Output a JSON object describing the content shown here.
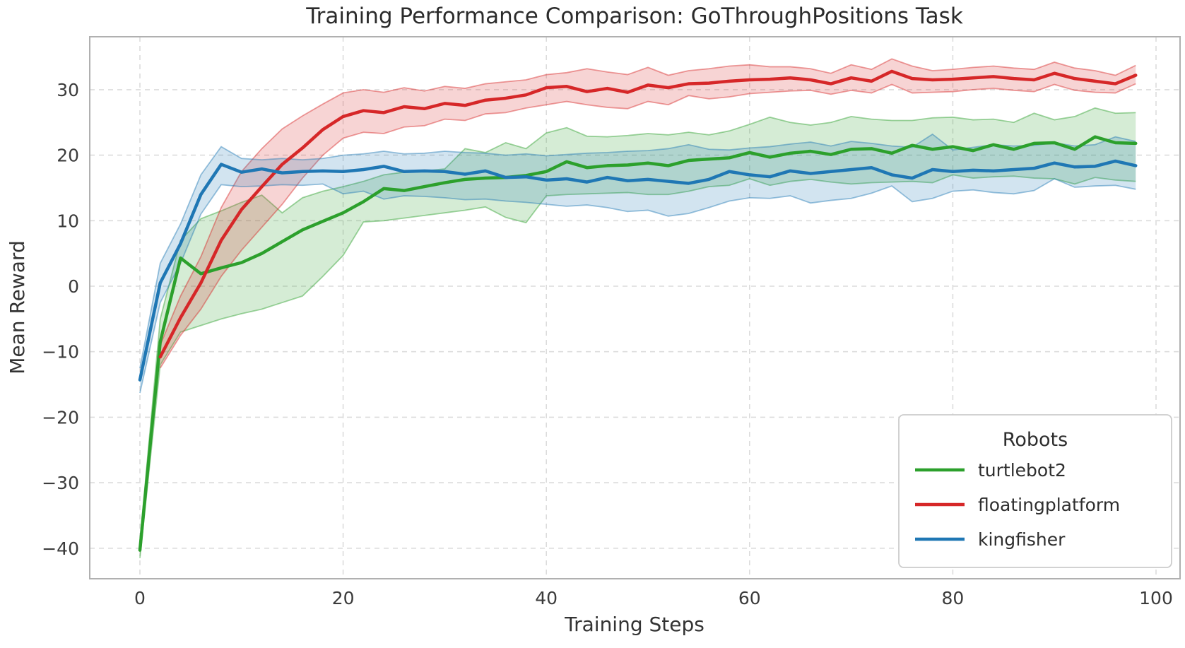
{
  "title": "Training Performance Comparison: GoThroughPositions Task",
  "xlabel": "Training Steps",
  "ylabel": "Mean Reward",
  "legend": {
    "title": "Robots",
    "entries": [
      "turtlebot2",
      "floatingplatform",
      "kingfisher"
    ]
  },
  "colors": {
    "turtlebot2": "#2ca02c",
    "floatingplatform": "#d62728",
    "kingfisher": "#1f77b4",
    "grid": "#dcdcdc",
    "spine": "#b0b0b0",
    "background": "#ffffff"
  },
  "chart_data": {
    "type": "line",
    "title": "Training Performance Comparison: GoThroughPositions Task",
    "xlabel": "Training Steps",
    "ylabel": "Mean Reward",
    "xlim": [
      -4.9,
      102.4
    ],
    "ylim": [
      -44.7,
      38.1
    ],
    "x_ticks": [
      0,
      20,
      40,
      60,
      80,
      100
    ],
    "y_ticks": [
      30,
      20,
      10,
      0,
      -10,
      -20,
      -30,
      -40
    ],
    "x_tick_labels": [
      "0",
      "20",
      "40",
      "60",
      "80",
      "100"
    ],
    "y_tick_labels": [
      "30",
      "20",
      "10",
      "0",
      "−10",
      "−20",
      "−30",
      "−40"
    ],
    "grid": "dashed",
    "legend_position": "lower right",
    "series": [
      {
        "name": "turtlebot2",
        "color": "#2ca02c",
        "x": [
          0,
          2,
          4,
          6,
          8,
          10,
          12,
          14,
          16,
          18,
          20,
          22,
          24,
          26,
          28,
          30,
          32,
          34,
          36,
          38,
          40,
          42,
          44,
          46,
          48,
          50,
          52,
          54,
          56,
          58,
          60,
          62,
          64,
          66,
          68,
          70,
          72,
          74,
          76,
          78,
          80,
          82,
          84,
          86,
          88,
          90,
          92,
          94,
          96,
          98
        ],
        "mean": [
          -40.3,
          -8.5,
          4.3,
          1.9,
          2.8,
          3.6,
          5.0,
          6.8,
          8.6,
          9.9,
          11.2,
          12.9,
          14.9,
          14.6,
          15.2,
          15.8,
          16.3,
          16.5,
          16.6,
          16.9,
          17.5,
          19.0,
          18.1,
          18.4,
          18.5,
          18.8,
          18.4,
          19.2,
          19.4,
          19.6,
          20.4,
          19.7,
          20.3,
          20.6,
          20.1,
          20.9,
          21.0,
          20.3,
          21.5,
          20.9,
          21.3,
          20.7,
          21.6,
          20.9,
          21.8,
          21.9,
          20.9,
          22.8,
          21.9,
          21.8
        ],
        "band_low": [
          -41.5,
          -12.0,
          -7.0,
          -6.0,
          -5.0,
          -4.2,
          -3.5,
          -2.5,
          -1.5,
          1.5,
          4.7,
          9.8,
          10.0,
          10.4,
          10.8,
          11.2,
          11.6,
          12.1,
          10.5,
          9.7,
          13.8,
          14.0,
          14.1,
          14.2,
          14.3,
          14.0,
          14.0,
          14.5,
          15.2,
          15.4,
          16.4,
          15.4,
          16.0,
          16.3,
          15.9,
          15.6,
          15.8,
          15.9,
          16.0,
          15.8,
          17.0,
          16.5,
          16.7,
          16.8,
          16.5,
          16.4,
          15.6,
          16.6,
          16.2,
          16.0
        ],
        "band_high": [
          -39.0,
          -5.0,
          7.0,
          10.3,
          11.5,
          12.8,
          13.9,
          11.2,
          13.5,
          14.5,
          15.2,
          16.0,
          17.0,
          17.4,
          17.6,
          17.9,
          21.0,
          20.4,
          21.9,
          21.0,
          23.4,
          24.2,
          22.9,
          22.8,
          23.0,
          23.3,
          23.1,
          23.5,
          23.1,
          23.7,
          24.7,
          25.8,
          25.0,
          24.6,
          25.0,
          25.9,
          25.5,
          25.3,
          25.3,
          25.7,
          25.8,
          25.4,
          25.5,
          25.0,
          26.4,
          25.4,
          25.9,
          27.2,
          26.4,
          26.5
        ]
      },
      {
        "name": "floatingplatform",
        "color": "#d62728",
        "x": [
          2,
          4,
          6,
          8,
          10,
          12,
          14,
          16,
          18,
          20,
          22,
          24,
          26,
          28,
          30,
          32,
          34,
          36,
          38,
          40,
          42,
          44,
          46,
          48,
          50,
          52,
          54,
          56,
          58,
          60,
          62,
          64,
          66,
          68,
          70,
          72,
          74,
          76,
          78,
          80,
          82,
          84,
          86,
          88,
          90,
          92,
          94,
          96,
          98
        ],
        "mean": [
          -10.8,
          -4.8,
          0.5,
          7.0,
          11.7,
          15.2,
          18.6,
          21.1,
          23.9,
          25.9,
          26.8,
          26.5,
          27.4,
          27.1,
          27.9,
          27.6,
          28.4,
          28.7,
          29.2,
          30.3,
          30.5,
          29.7,
          30.2,
          29.6,
          30.7,
          30.3,
          30.9,
          31.0,
          31.3,
          31.5,
          31.6,
          31.8,
          31.5,
          30.9,
          31.8,
          31.3,
          32.8,
          31.7,
          31.5,
          31.6,
          31.8,
          32.0,
          31.7,
          31.5,
          32.5,
          31.7,
          31.3,
          30.9,
          32.2
        ],
        "band_low": [
          -12.5,
          -7.5,
          -3.5,
          1.5,
          5.5,
          9.0,
          12.5,
          16.5,
          20.0,
          22.6,
          23.5,
          23.3,
          24.3,
          24.5,
          25.5,
          25.3,
          26.3,
          26.5,
          27.2,
          27.7,
          28.2,
          27.7,
          27.3,
          27.1,
          28.2,
          27.7,
          29.1,
          28.6,
          28.9,
          29.4,
          29.6,
          29.8,
          29.9,
          29.3,
          29.9,
          29.5,
          30.8,
          29.5,
          29.6,
          29.7,
          30.0,
          30.2,
          29.9,
          29.7,
          30.8,
          29.9,
          29.6,
          29.5,
          30.9
        ],
        "band_high": [
          -9.0,
          -1.5,
          4.5,
          12.0,
          17.5,
          21.0,
          24.0,
          26.0,
          27.8,
          29.5,
          30.0,
          29.6,
          30.3,
          29.8,
          30.5,
          30.2,
          30.9,
          31.2,
          31.5,
          32.3,
          32.6,
          33.2,
          32.7,
          32.3,
          33.4,
          32.2,
          32.9,
          33.2,
          33.6,
          33.8,
          33.5,
          33.5,
          33.2,
          32.5,
          33.8,
          33.1,
          34.7,
          33.6,
          32.9,
          33.1,
          33.4,
          33.6,
          33.3,
          33.1,
          34.2,
          33.3,
          32.9,
          32.2,
          33.7
        ]
      },
      {
        "name": "kingfisher",
        "color": "#1f77b4",
        "x": [
          0,
          2,
          4,
          6,
          8,
          10,
          12,
          14,
          16,
          18,
          20,
          22,
          24,
          26,
          28,
          30,
          32,
          34,
          36,
          38,
          40,
          42,
          44,
          46,
          48,
          50,
          52,
          54,
          56,
          58,
          60,
          62,
          64,
          66,
          68,
          70,
          72,
          74,
          76,
          78,
          80,
          82,
          84,
          86,
          88,
          90,
          92,
          94,
          96,
          98
        ],
        "mean": [
          -14.3,
          0.5,
          6.5,
          14.0,
          18.6,
          17.4,
          17.9,
          17.3,
          17.5,
          17.6,
          17.5,
          17.8,
          18.3,
          17.5,
          17.6,
          17.5,
          17.1,
          17.6,
          16.6,
          16.7,
          16.2,
          16.4,
          15.9,
          16.6,
          16.1,
          16.3,
          16.0,
          15.7,
          16.3,
          17.5,
          17.0,
          16.7,
          17.6,
          17.2,
          17.5,
          17.8,
          18.1,
          17.0,
          16.5,
          17.8,
          17.5,
          17.7,
          17.6,
          17.8,
          18.0,
          18.8,
          18.2,
          18.3,
          19.1,
          18.4
        ],
        "band_low": [
          -16.3,
          -2.5,
          3.5,
          11.0,
          15.5,
          15.2,
          15.3,
          15.5,
          15.4,
          15.6,
          14.1,
          14.5,
          13.3,
          13.8,
          13.7,
          13.5,
          13.2,
          13.3,
          13.0,
          12.8,
          12.5,
          12.2,
          12.4,
          12.0,
          11.4,
          11.6,
          10.7,
          11.1,
          12.0,
          13.0,
          13.5,
          13.4,
          13.8,
          12.7,
          13.1,
          13.4,
          14.2,
          15.3,
          12.9,
          13.4,
          14.5,
          14.7,
          14.3,
          14.1,
          14.6,
          16.4,
          15.1,
          15.3,
          15.4,
          14.8
        ],
        "band_high": [
          -12.5,
          3.5,
          9.5,
          17.0,
          21.3,
          19.5,
          19.3,
          19.5,
          19.3,
          19.5,
          20.0,
          20.2,
          20.6,
          20.2,
          20.3,
          20.6,
          20.4,
          20.3,
          20.0,
          20.2,
          19.9,
          20.1,
          20.3,
          20.4,
          20.6,
          20.7,
          21.0,
          21.6,
          20.9,
          20.8,
          21.1,
          21.3,
          21.7,
          22.0,
          21.4,
          22.1,
          21.8,
          21.4,
          21.2,
          23.2,
          20.8,
          21.2,
          21.6,
          21.4,
          21.5,
          21.9,
          21.4,
          21.6,
          22.8,
          22.1
        ]
      }
    ]
  }
}
